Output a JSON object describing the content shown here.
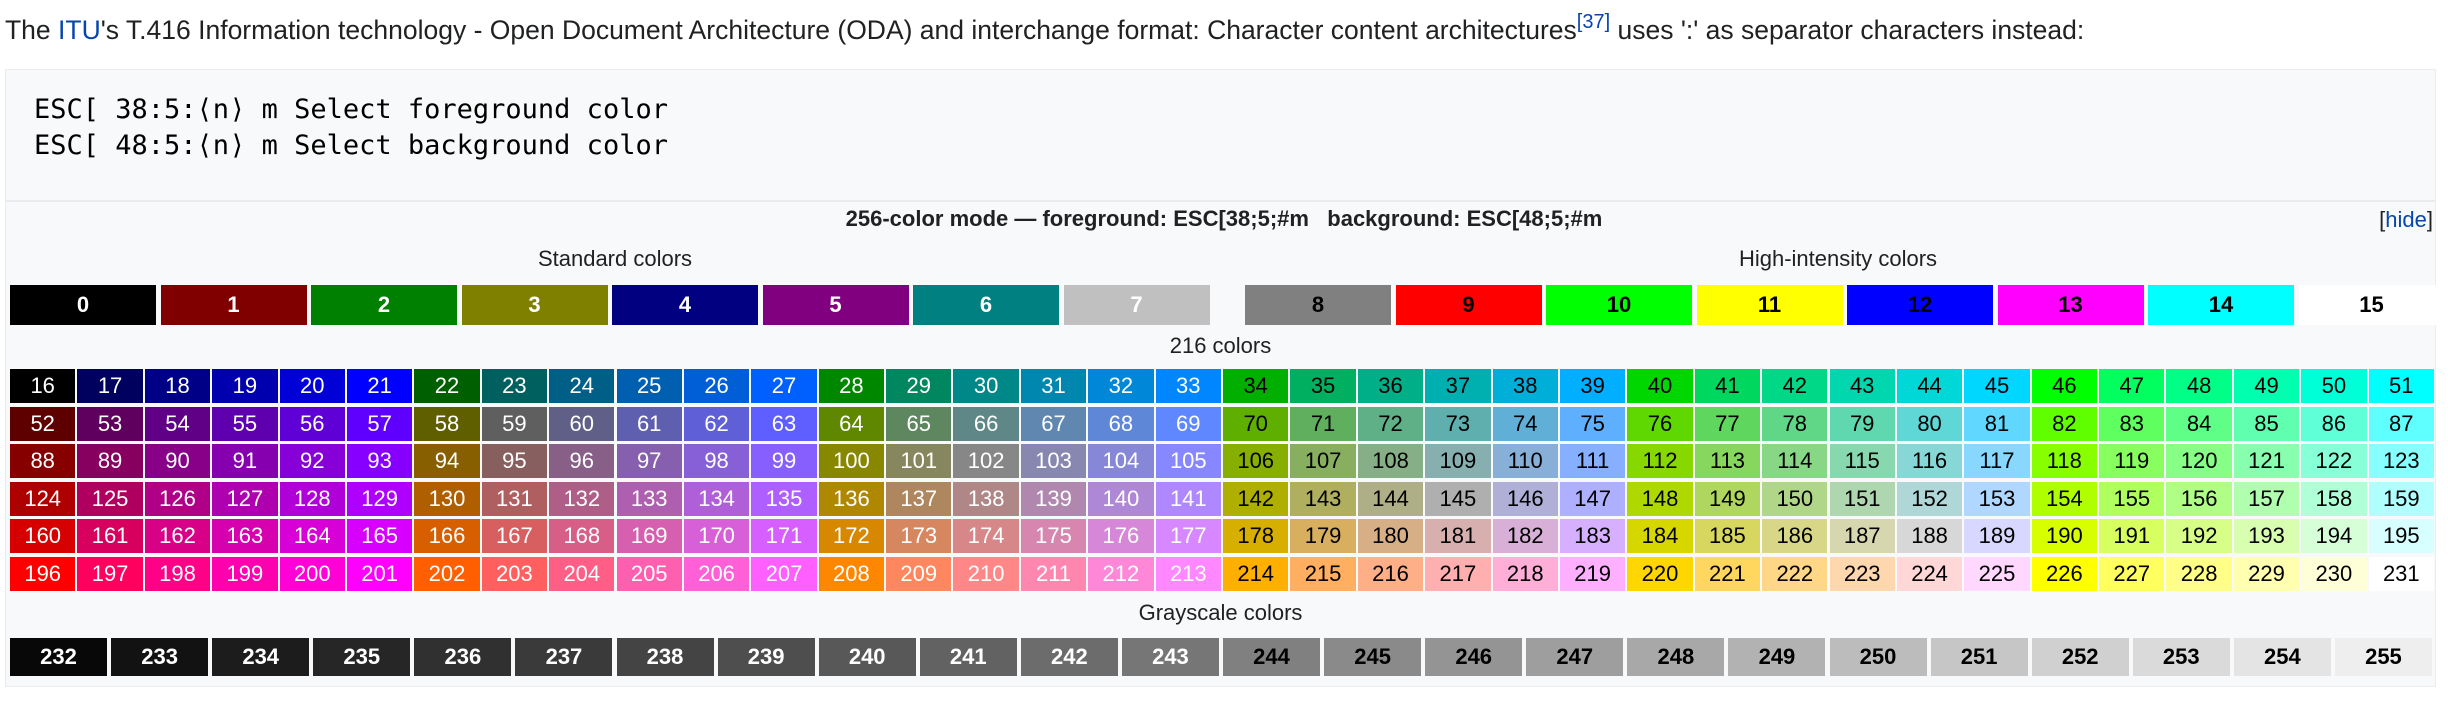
{
  "intro": {
    "prefix": "The ",
    "link": "ITU",
    "middle": "'s T.416 Information technology - Open Document Architecture (ODA) and interchange format: Character content architectures",
    "ref": "[37]",
    "suffix": " uses ':' as separator characters instead:"
  },
  "code": {
    "line1": "ESC[ 38:5:⟨n⟩ m Select foreground color",
    "line2": "ESC[ 48:5:⟨n⟩ m Select background color"
  },
  "navbox": {
    "caption": "256-color mode — foreground: ESC[38;5;#m   background: ESC[48;5;#m",
    "hide_open": "[",
    "hide_label": "hide",
    "hide_close": "]",
    "standard_heading": "Standard colors",
    "high_heading": "High-intensity colors",
    "cube_heading": "216 colors",
    "gray_heading": "Grayscale colors"
  },
  "colors": {
    "standard": [
      "#000000",
      "#800000",
      "#008000",
      "#808000",
      "#000080",
      "#800080",
      "#008080",
      "#c0c0c0"
    ],
    "standard_text": [
      "#ffffff",
      "#ffffff",
      "#ffffff",
      "#ffffff",
      "#ffffff",
      "#ffffff",
      "#ffffff",
      "#ffffff"
    ],
    "high": [
      "#808080",
      "#ff0000",
      "#00ff00",
      "#ffff00",
      "#0000ff",
      "#ff00ff",
      "#00ffff",
      "#ffffff"
    ],
    "high_text": [
      "#000000",
      "#000000",
      "#000000",
      "#000000",
      "#000000",
      "#000000",
      "#000000",
      "#000000"
    ],
    "cube_levels": [
      "#00",
      "#5f",
      "#87",
      "#af",
      "#d7",
      "#ff"
    ],
    "cube_levels_hex": [
      "00",
      "5f",
      "87",
      "af",
      "d7",
      "ff"
    ],
    "gray_levels": [
      "08",
      "12",
      "1c",
      "26",
      "30",
      "3a",
      "44",
      "4e",
      "58",
      "62",
      "6c",
      "76",
      "80",
      "8a",
      "94",
      "9e",
      "a8",
      "b2",
      "bc",
      "c6",
      "d0",
      "da",
      "e4",
      "ee"
    ]
  }
}
